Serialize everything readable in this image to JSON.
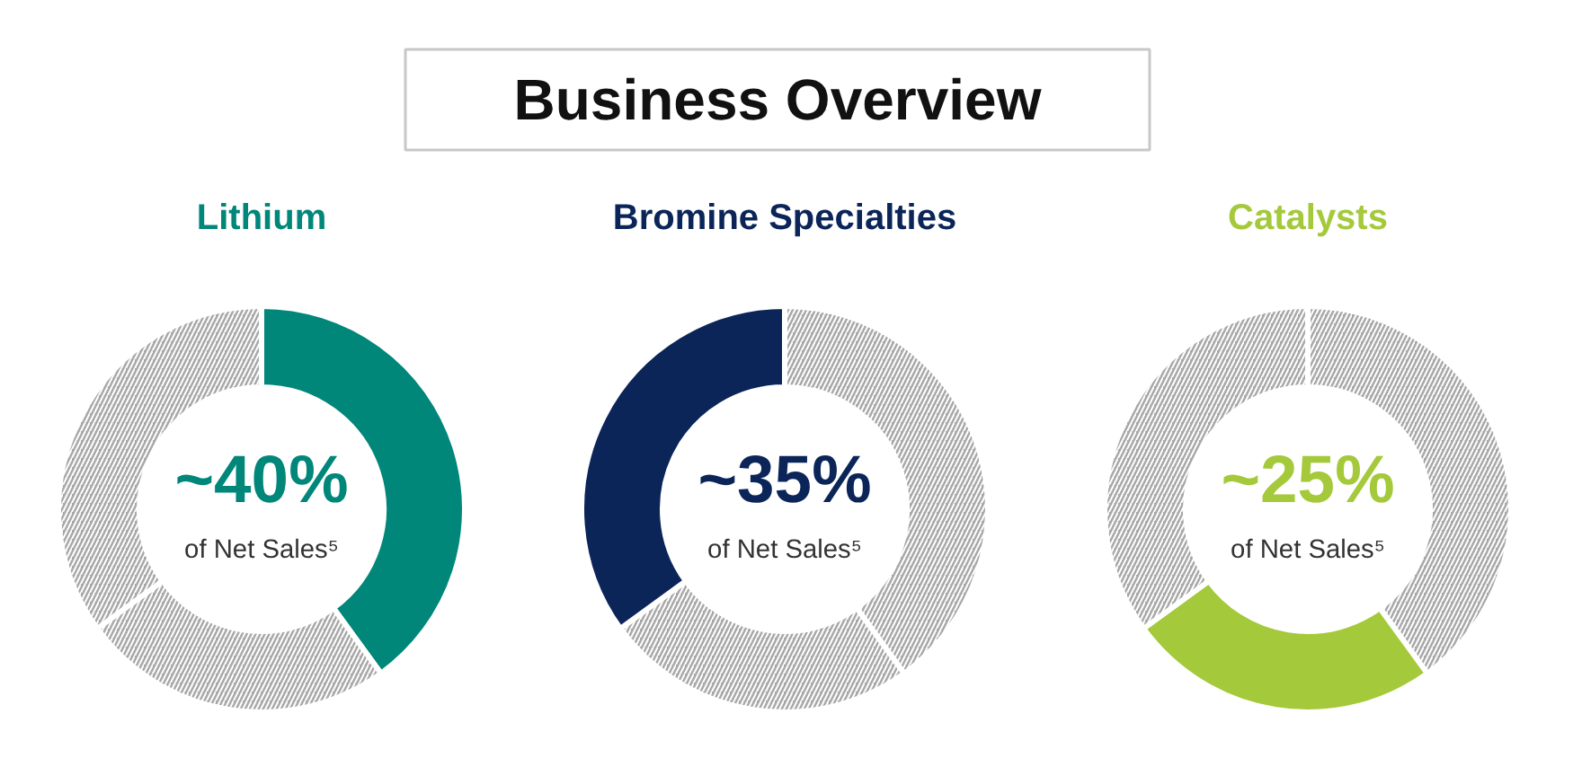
{
  "chart_data": [
    {
      "type": "other",
      "title": "Business Overview"
    },
    {
      "type": "donut",
      "title": "Lithium",
      "categories": [
        null,
        null,
        null
      ],
      "values": [
        40,
        25,
        35
      ],
      "colors": [
        "#00877a",
        "#a8a8a8",
        "#a8a8a8"
      ],
      "annotations": [
        "~40%",
        "of Net Sales⁵"
      ]
    },
    {
      "type": "donut",
      "title": "Bromine Specialties",
      "categories": [
        null,
        null,
        null
      ],
      "values": [
        40,
        25,
        35
      ],
      "colors": [
        "#a8a8a8",
        "#a8a8a8",
        "#0b2559"
      ],
      "annotations": [
        "~35%",
        "of Net Sales⁵"
      ]
    },
    {
      "type": "donut",
      "title": "Catalysts",
      "categories": [
        null,
        null,
        null
      ],
      "values": [
        40,
        25,
        35
      ],
      "colors": [
        "#a8a8a8",
        "#a4c93a",
        "#a8a8a8"
      ],
      "annotations": [
        "~25%",
        "of Net Sales⁵"
      ]
    }
  ]
}
